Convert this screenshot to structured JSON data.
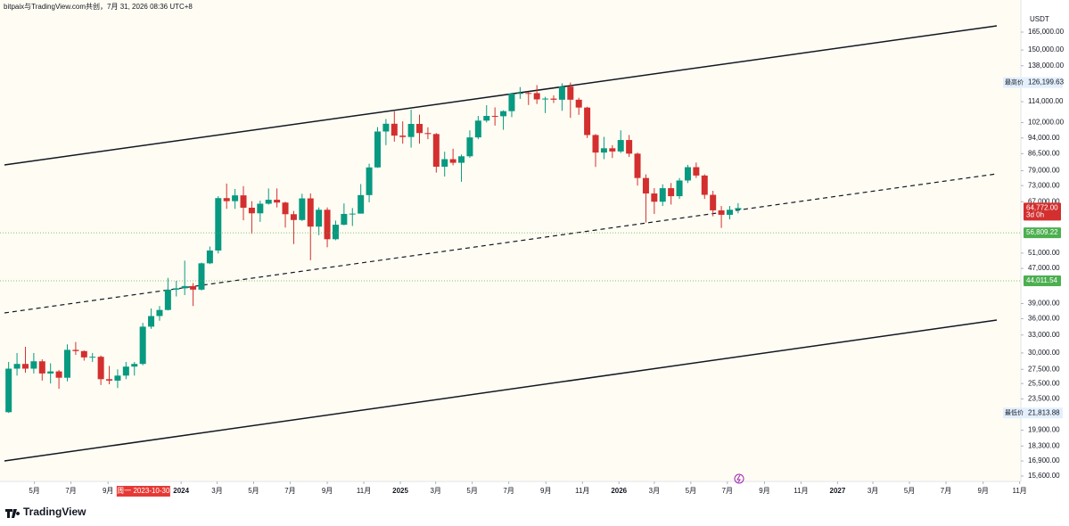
{
  "chart_data": {
    "type": "candlestick",
    "header": "bitpaix与TradingView.com共创，7月 31, 2026 08:36 UTC+8",
    "unit": "USDT",
    "logo": "TradingView",
    "log": true,
    "grid": false,
    "up_color": "#089981",
    "down_color": "#d32f2f",
    "x": [
      "2023-03-13",
      "2023-03-27",
      "2023-04-10",
      "2023-04-24",
      "2023-05-08",
      "2023-05-22",
      "2023-06-05",
      "2023-06-19",
      "2023-07-03",
      "2023-07-17",
      "2023-07-31",
      "2023-08-14",
      "2023-08-28",
      "2023-09-11",
      "2023-09-25",
      "2023-10-09",
      "2023-10-23",
      "2023-11-06",
      "2023-11-20",
      "2023-12-04",
      "2023-12-18",
      "2024-01-01",
      "2024-01-15",
      "2024-01-29",
      "2024-02-12",
      "2024-02-26",
      "2024-03-11",
      "2024-03-25",
      "2024-04-08",
      "2024-04-22",
      "2024-05-06",
      "2024-05-20",
      "2024-06-03",
      "2024-06-17",
      "2024-07-01",
      "2024-07-15",
      "2024-07-29",
      "2024-08-12",
      "2024-08-26",
      "2024-09-09",
      "2024-09-23",
      "2024-10-07",
      "2024-10-21",
      "2024-11-04",
      "2024-11-18",
      "2024-12-02",
      "2024-12-16",
      "2024-12-30",
      "2025-01-13",
      "2025-01-27",
      "2025-02-10",
      "2025-02-24",
      "2025-03-10",
      "2025-03-24",
      "2025-04-07",
      "2025-04-21",
      "2025-05-05",
      "2025-05-19",
      "2025-06-02",
      "2025-06-16",
      "2025-06-30",
      "2025-07-14",
      "2025-07-28",
      "2025-08-11",
      "2025-08-25",
      "2025-09-08",
      "2025-09-22",
      "2025-10-06",
      "2025-10-20",
      "2025-11-03",
      "2025-11-17",
      "2025-12-01",
      "2025-12-15",
      "2025-12-29",
      "2026-01-12",
      "2026-01-26",
      "2026-02-09",
      "2026-02-23",
      "2026-03-09",
      "2026-03-23",
      "2026-04-06",
      "2026-04-20",
      "2026-05-04",
      "2026-05-18",
      "2026-06-01",
      "2026-06-15",
      "2026-06-29",
      "2026-07-13"
    ],
    "open": [
      21900,
      27600,
      28300,
      27600,
      28700,
      26900,
      27200,
      26300,
      30500,
      30300,
      29300,
      29400,
      26100,
      25900,
      26600,
      27900,
      28300,
      34500,
      36500,
      37700,
      42000,
      42300,
      42800,
      42000,
      48300,
      51700,
      68300,
      67200,
      69300,
      64900,
      63000,
      66300,
      67700,
      66700,
      62700,
      60800,
      68200,
      58700,
      64200,
      54900,
      59300,
      62800,
      62900,
      69400,
      80400,
      97300,
      101400,
      95200,
      94500,
      101300,
      96500,
      96000,
      80700,
      84000,
      82400,
      85300,
      94300,
      103100,
      105700,
      105500,
      108400,
      119000,
      119400,
      119300,
      115400,
      115900,
      115200,
      123500,
      115200,
      110500,
      95500,
      87000,
      89000,
      87500,
      93000,
      86500,
      76000,
      70000,
      67000,
      72000,
      69000,
      75000,
      80500,
      77000,
      69500,
      64000,
      62500,
      64200
    ],
    "high": [
      28600,
      30000,
      31000,
      30000,
      29000,
      28400,
      27400,
      31400,
      31800,
      30400,
      30000,
      29600,
      28000,
      27500,
      28600,
      28600,
      35200,
      38000,
      38500,
      44700,
      44000,
      49000,
      43500,
      48500,
      52800,
      69000,
      73800,
      71700,
      72800,
      67200,
      67400,
      71900,
      71900,
      67000,
      63800,
      69900,
      70000,
      65000,
      65000,
      60600,
      66400,
      64800,
      73600,
      82000,
      99600,
      104000,
      108300,
      102700,
      109300,
      106400,
      99500,
      96500,
      87400,
      88800,
      86100,
      97900,
      105700,
      111900,
      110600,
      108900,
      119500,
      123200,
      120000,
      124500,
      117000,
      117900,
      125700,
      126199.63,
      116400,
      111000,
      96000,
      94600,
      90500,
      97900,
      95500,
      87000,
      77500,
      72000,
      73500,
      74000,
      76000,
      81500,
      82500,
      77500,
      71000,
      65500,
      65500,
      66500
    ],
    "low": [
      21813.88,
      26600,
      27000,
      26900,
      25900,
      25500,
      24800,
      25800,
      29700,
      28800,
      28600,
      25300,
      25400,
      24900,
      26100,
      26600,
      28100,
      34100,
      35600,
      37600,
      40500,
      40800,
      38500,
      41800,
      48100,
      50900,
      64500,
      64500,
      60700,
      56500,
      60200,
      66000,
      65000,
      58400,
      53500,
      60500,
      49100,
      56100,
      52600,
      54600,
      59100,
      58900,
      62900,
      66800,
      80200,
      90500,
      92200,
      91200,
      89300,
      91200,
      93400,
      78200,
      76600,
      81300,
      74500,
      84600,
      93400,
      102100,
      100400,
      98200,
      105000,
      115700,
      112000,
      112600,
      107300,
      113200,
      108600,
      104600,
      106300,
      94000,
      80600,
      84000,
      84500,
      86800,
      85000,
      73000,
      60000,
      62800,
      65500,
      66000,
      68000,
      74000,
      76000,
      68000,
      62000,
      58300,
      61000,
      63000
    ],
    "close": [
      27600,
      28300,
      27600,
      28700,
      26900,
      27200,
      26300,
      30500,
      30300,
      29300,
      29400,
      26100,
      25900,
      26600,
      27900,
      28300,
      34500,
      36500,
      37700,
      42000,
      42300,
      42800,
      42000,
      48300,
      51700,
      68300,
      67200,
      69300,
      64900,
      63000,
      66300,
      67700,
      66700,
      62700,
      60800,
      68200,
      58700,
      64200,
      54900,
      59300,
      62800,
      62900,
      69400,
      80400,
      97300,
      101400,
      95200,
      94500,
      101300,
      96500,
      96000,
      80700,
      84000,
      82400,
      85300,
      94300,
      103100,
      105700,
      105500,
      108400,
      119000,
      119400,
      119300,
      115400,
      115900,
      115200,
      123500,
      115200,
      110500,
      95500,
      87000,
      89000,
      87500,
      93000,
      86500,
      76000,
      70000,
      67000,
      72000,
      69000,
      75000,
      80500,
      77000,
      69500,
      64000,
      62500,
      64200,
      64772
    ],
    "xlim": [
      "2023-03-12",
      "2027-11-03"
    ],
    "ylim": [
      15160,
      188400
    ],
    "yticks": [
      {
        "value": 165000,
        "label": "165,000.00"
      },
      {
        "value": 150000,
        "label": "150,000.00"
      },
      {
        "value": 138000,
        "label": "138,000.00"
      },
      {
        "value": 114000,
        "label": "114,000.00"
      },
      {
        "value": 102000,
        "label": "102,000.00"
      },
      {
        "value": 94000,
        "label": "94,000.00"
      },
      {
        "value": 86500,
        "label": "86,500.00"
      },
      {
        "value": 79000,
        "label": "79,000.00"
      },
      {
        "value": 73000,
        "label": "73,000.00"
      },
      {
        "value": 67000,
        "label": "67,000.00"
      },
      {
        "value": 51000,
        "label": "51,000.00"
      },
      {
        "value": 47000,
        "label": "47,000.00"
      },
      {
        "value": 39000,
        "label": "39,000.00"
      },
      {
        "value": 36000,
        "label": "36,000.00"
      },
      {
        "value": 33000,
        "label": "33,000.00"
      },
      {
        "value": 30000,
        "label": "30,000.00"
      },
      {
        "value": 27500,
        "label": "27,500.00"
      },
      {
        "value": 25500,
        "label": "25,500.00"
      },
      {
        "value": 23500,
        "label": "23,500.00"
      },
      {
        "value": 19900,
        "label": "19,900.00"
      },
      {
        "value": 18300,
        "label": "18,300.00"
      },
      {
        "value": 16900,
        "label": "16,900.00"
      },
      {
        "value": 15600,
        "label": "15,600.00"
      }
    ],
    "xticks": [
      {
        "value": "2023-05-01",
        "label": "5月"
      },
      {
        "value": "2023-07-01",
        "label": "7月"
      },
      {
        "value": "2023-09-01",
        "label": "9月"
      },
      {
        "value": "2024-01-01",
        "label": "2024"
      },
      {
        "value": "2024-03-01",
        "label": "3月"
      },
      {
        "value": "2024-05-01",
        "label": "5月"
      },
      {
        "value": "2024-07-01",
        "label": "7月"
      },
      {
        "value": "2024-09-01",
        "label": "9月"
      },
      {
        "value": "2024-11-01",
        "label": "11月"
      },
      {
        "value": "2025-01-01",
        "label": "2025"
      },
      {
        "value": "2025-03-01",
        "label": "3月"
      },
      {
        "value": "2025-05-01",
        "label": "5月"
      },
      {
        "value": "2025-07-01",
        "label": "7月"
      },
      {
        "value": "2025-09-01",
        "label": "9月"
      },
      {
        "value": "2025-11-01",
        "label": "11月"
      },
      {
        "value": "2026-01-01",
        "label": "2026"
      },
      {
        "value": "2026-03-01",
        "label": "3月"
      },
      {
        "value": "2026-05-01",
        "label": "5月"
      },
      {
        "value": "2026-07-01",
        "label": "7月"
      },
      {
        "value": "2026-09-01",
        "label": "9月"
      },
      {
        "value": "2026-11-01",
        "label": "11月"
      },
      {
        "value": "2027-01-01",
        "label": "2027"
      },
      {
        "value": "2027-03-01",
        "label": "3月"
      },
      {
        "value": "2027-05-01",
        "label": "5月"
      },
      {
        "value": "2027-07-01",
        "label": "7月"
      },
      {
        "value": "2027-09-01",
        "label": "9月"
      },
      {
        "value": "2027-11-01",
        "label": "11月"
      }
    ],
    "crosshair_x": {
      "value": "2023-10-30",
      "label": "周一 2023-10-30"
    },
    "last_price": {
      "value": 64772,
      "label": "64,772.00",
      "countdown": "3d 0h",
      "color": "#d32f2f"
    },
    "price_lines": [
      {
        "value": 56809.22,
        "label": "56,809.22",
        "color": "#4caf50"
      },
      {
        "value": 44011.54,
        "label": "44,011.54",
        "color": "#4caf50"
      }
    ],
    "high_marker": {
      "name": "最高价",
      "value": 126199.63,
      "label": "126,199.63"
    },
    "low_marker": {
      "name": "最低价",
      "value": 21813.88,
      "label": "21,813.88"
    }
  }
}
